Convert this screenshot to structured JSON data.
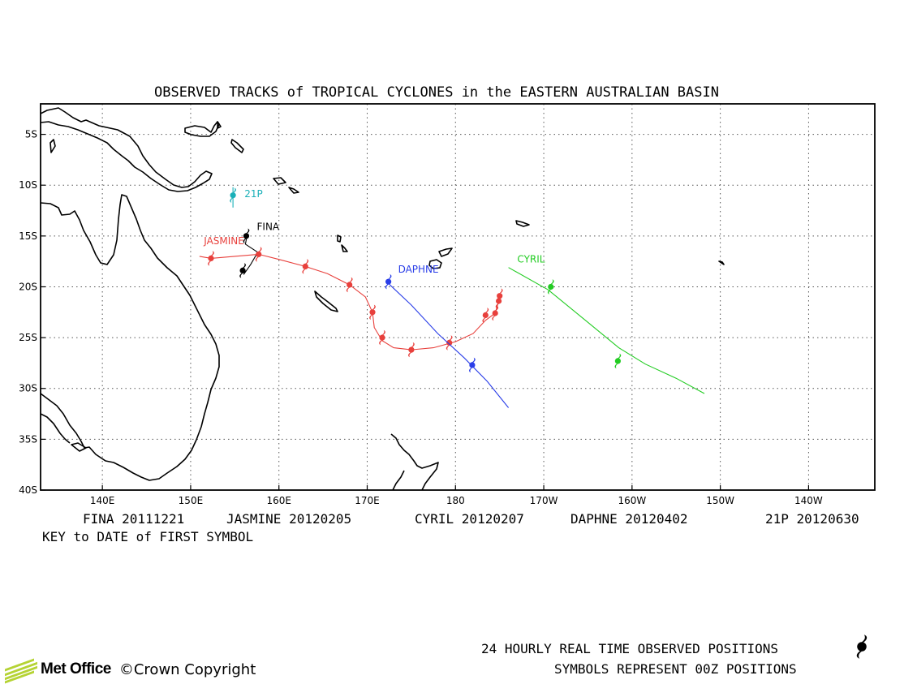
{
  "title": "OBSERVED TRACKS of TROPICAL CYCLONES in the EASTERN AUSTRALIAN BASIN",
  "axes": {
    "lon_ticks": [
      {
        "value": 140,
        "label": "140E"
      },
      {
        "value": 150,
        "label": "150E"
      },
      {
        "value": 160,
        "label": "160E"
      },
      {
        "value": 170,
        "label": "170E"
      },
      {
        "value": 180,
        "label": "180"
      },
      {
        "value": 190,
        "label": "170W"
      },
      {
        "value": 200,
        "label": "160W"
      },
      {
        "value": 210,
        "label": "150W"
      },
      {
        "value": 220,
        "label": "140W"
      }
    ],
    "lat_ticks": [
      {
        "value": -5,
        "label": "5S"
      },
      {
        "value": -10,
        "label": "10S"
      },
      {
        "value": -15,
        "label": "15S"
      },
      {
        "value": -20,
        "label": "20S"
      },
      {
        "value": -25,
        "label": "25S"
      },
      {
        "value": -30,
        "label": "30S"
      },
      {
        "value": -35,
        "label": "35S"
      },
      {
        "value": -40,
        "label": "40S"
      }
    ],
    "lon_range": [
      133,
      227.5
    ],
    "lat_range": [
      -40,
      -2
    ],
    "grid": true
  },
  "storms": [
    {
      "name": "FINA",
      "color": "#000000",
      "label_pos": [
        157.5,
        -14.4
      ],
      "track": [
        [
          156.4,
          -14.9
        ],
        [
          156.2,
          -15.8
        ],
        [
          157.6,
          -16.6
        ],
        [
          156.8,
          -17.8
        ],
        [
          156.0,
          -18.8
        ]
      ],
      "symbols": [
        [
          156.3,
          -15.0
        ],
        [
          155.9,
          -18.4
        ]
      ]
    },
    {
      "name": "JASMINE",
      "color": "#e8403c",
      "label_pos": [
        151.5,
        -15.8
      ],
      "track": [
        [
          151.0,
          -17.0
        ],
        [
          152.3,
          -17.2
        ],
        [
          155.0,
          -17.0
        ],
        [
          157.7,
          -16.8
        ],
        [
          160.0,
          -17.3
        ],
        [
          163.0,
          -18.0
        ],
        [
          165.5,
          -18.7
        ],
        [
          168.0,
          -19.8
        ],
        [
          169.8,
          -21.0
        ],
        [
          170.6,
          -22.5
        ],
        [
          170.8,
          -24.0
        ],
        [
          171.7,
          -25.3
        ],
        [
          173.0,
          -26.0
        ],
        [
          175.0,
          -26.2
        ],
        [
          177.5,
          -26.0
        ],
        [
          180.0,
          -25.4
        ],
        [
          182.0,
          -24.6
        ],
        [
          183.4,
          -23.3
        ],
        [
          184.5,
          -22.6
        ],
        [
          184.9,
          -21.4
        ],
        [
          185.0,
          -20.9
        ]
      ],
      "symbols": [
        [
          152.3,
          -17.2
        ],
        [
          157.7,
          -16.8
        ],
        [
          163.0,
          -18.0
        ],
        [
          168.0,
          -19.8
        ],
        [
          170.6,
          -22.5
        ],
        [
          171.7,
          -25.0
        ],
        [
          175.0,
          -26.2
        ],
        [
          179.3,
          -25.5
        ],
        [
          183.4,
          -22.8
        ],
        [
          184.5,
          -22.6
        ],
        [
          184.9,
          -21.4
        ],
        [
          185.0,
          -20.9
        ]
      ]
    },
    {
      "name": "DAPHNE",
      "color": "#2a3ee8",
      "label_pos": [
        173.5,
        -18.6
      ],
      "track": [
        [
          172.2,
          -19.5
        ],
        [
          175.0,
          -21.8
        ],
        [
          178.0,
          -24.6
        ],
        [
          181.0,
          -27.0
        ],
        [
          183.6,
          -29.3
        ],
        [
          186.0,
          -31.9
        ]
      ],
      "symbols": [
        [
          172.4,
          -19.5
        ],
        [
          181.9,
          -27.7
        ]
      ]
    },
    {
      "name": "CYRIL",
      "color": "#22cc22",
      "label_pos": [
        187.0,
        -17.6
      ],
      "track": [
        [
          186.0,
          -18.1
        ],
        [
          190.5,
          -20.3
        ],
        [
          195.0,
          -23.5
        ],
        [
          198.5,
          -26.0
        ],
        [
          201.5,
          -27.6
        ],
        [
          205.0,
          -29.0
        ],
        [
          208.2,
          -30.5
        ]
      ],
      "symbols": [
        [
          190.8,
          -20.0
        ],
        [
          198.4,
          -27.3
        ]
      ]
    },
    {
      "name": "21P",
      "color": "#1ab0b8",
      "label_pos": [
        156.1,
        -11.2
      ],
      "track": [
        [
          154.8,
          -10.2
        ],
        [
          154.8,
          -12.2
        ]
      ],
      "symbols": [
        [
          154.8,
          -11.0
        ]
      ]
    }
  ],
  "key": {
    "entries": [
      "FINA 20111221",
      "JASMINE 20120205",
      "CYRIL 20120207",
      "DAPHNE 20120402",
      "21P 20120630"
    ],
    "caption": "KEY to DATE of FIRST SYMBOL"
  },
  "footer": {
    "logo_text": "Met Office",
    "copyright": "©Crown Copyright",
    "line1": "24 HOURLY REAL TIME OBSERVED POSITIONS",
    "line2": "SYMBOLS REPRESENT 00Z POSITIONS"
  }
}
